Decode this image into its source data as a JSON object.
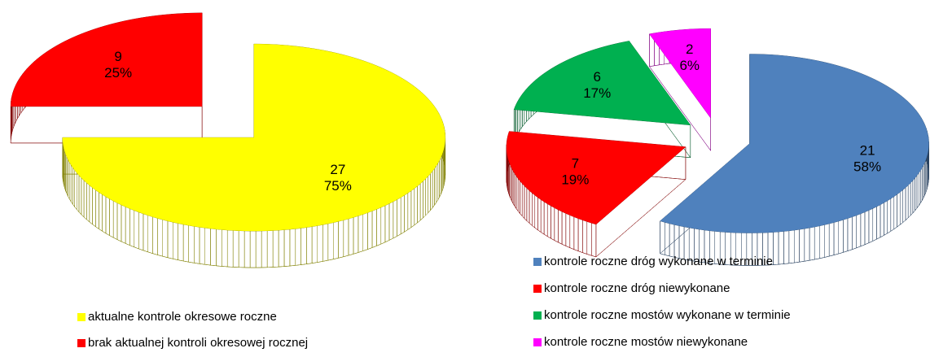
{
  "chart_data": [
    {
      "type": "pie",
      "categories": [
        "aktualne kontrole okresowe roczne",
        "brak aktualnej kontroli okresowej rocznej"
      ],
      "values": [
        27,
        9
      ],
      "percents": [
        75,
        25
      ],
      "percent_labels": [
        "75%",
        "25%"
      ],
      "colors": [
        "#ffff00",
        "#ff0000"
      ],
      "legend": "bottom-left"
    },
    {
      "type": "pie",
      "categories": [
        "kontrole roczne dróg wykonane w  terminie",
        "kontrole roczne dróg niewykonane",
        "kontrole roczne mostów wykonane w  terminie",
        "kontrole roczne mostów niewykonane"
      ],
      "values": [
        21,
        7,
        6,
        2
      ],
      "percents": [
        58,
        19,
        17,
        6
      ],
      "percent_labels": [
        "58%",
        "19%",
        "17%",
        "6%"
      ],
      "colors": [
        "#4f81bd",
        "#ff0000",
        "#00b050",
        "#ff00ff"
      ],
      "legend": "bottom-left"
    }
  ]
}
